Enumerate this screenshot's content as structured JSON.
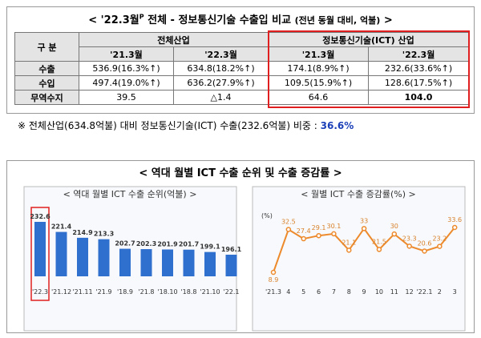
{
  "header": {
    "prefix": "< '22.3월",
    "sup": "P",
    "main": " 전체 - 정보통신기술 수출입 비교 ",
    "note": "(전년 동월 대비, 억불)",
    "suffix": " >"
  },
  "table": {
    "corner": "구 분",
    "groups": [
      "전체산업",
      "정보통신기술(ICT) 산업"
    ],
    "periods": [
      "'21.3월",
      "'22.3월",
      "'21.3월",
      "'22.3월"
    ],
    "rows": [
      [
        "수출",
        "536.9(16.3%↑)",
        "634.8(18.2%↑)",
        "174.1(8.9%↑)",
        "232.6(33.6%↑)"
      ],
      [
        "수입",
        "497.4(19.0%↑)",
        "636.2(27.9%↑)",
        "109.5(15.9%↑)",
        "128.6(17.5%↑)"
      ],
      [
        "무역수지",
        "39.5",
        "△1.4",
        "64.6",
        "104.0"
      ]
    ]
  },
  "note": {
    "text": "※ 전체산업(634.8억불) 대비 정보통신기술(ICT) 수출(232.6억불) 비중 : ",
    "highlight": "36.6%"
  },
  "section_title": "< 역대 월별 ICT 수출 순위 및 수출 증감률 >",
  "chart_data": [
    {
      "type": "bar",
      "title": "< 역대 월별 ICT 수출 순위(억불) >",
      "color": "#2f6fce",
      "categories": [
        "'22.3",
        "'21.12",
        "'21.11",
        "'21.9",
        "'18.9",
        "'21.8",
        "'18.10",
        "'18.8",
        "'21.10",
        "'22.1"
      ],
      "values": [
        232.6,
        221.4,
        214.9,
        213.3,
        202.7,
        202.3,
        201.9,
        201.7,
        199.1,
        196.1
      ]
    },
    {
      "type": "line",
      "title": "< 월별 ICT 수출 증감률(%) >",
      "y_label": "(%)",
      "color": "#ed8a2c",
      "categories": [
        "'21.3",
        "4",
        "5",
        "6",
        "7",
        "8",
        "9",
        "10",
        "11",
        "12",
        "'22.1",
        "2",
        "3"
      ],
      "values": [
        8.9,
        32.5,
        27.4,
        29.1,
        30.1,
        21.1,
        33.0,
        21.5,
        30.0,
        23.3,
        20.6,
        23.2,
        33.6
      ]
    }
  ]
}
